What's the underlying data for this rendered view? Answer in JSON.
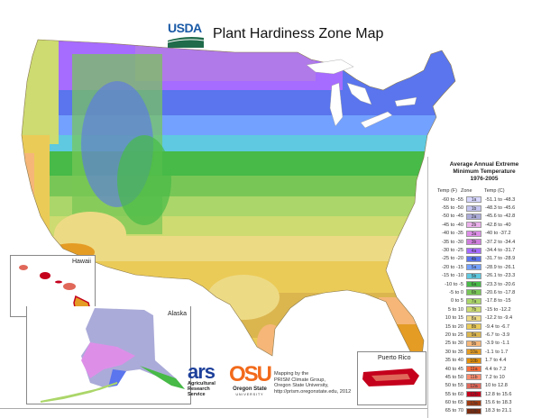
{
  "header": {
    "logo_text": "USDA",
    "title": "Plant Hardiness Zone Map"
  },
  "legend": {
    "title_lines": [
      "Average Annual Extreme",
      "Minimum Temperature",
      "1976-2005"
    ],
    "col_f": "Temp (F)",
    "col_zone": "Zone",
    "col_c": "Temp (C)",
    "rows": [
      {
        "f": "-60 to -55",
        "zone": "1a",
        "c": "-51.1 to -48.3",
        "color": "#d6d6ff"
      },
      {
        "f": "-55 to -50",
        "zone": "1b",
        "c": "-48.3 to -45.6",
        "color": "#c4c4f2"
      },
      {
        "f": "-50 to -45",
        "zone": "2a",
        "c": "-45.6 to -42.8",
        "color": "#ababd9"
      },
      {
        "f": "-45 to -40",
        "zone": "2b",
        "c": "-42.8 to -40",
        "color": "#ebb0eb"
      },
      {
        "f": "-40 to -35",
        "zone": "3a",
        "c": "-40 to -37.2",
        "color": "#dd8fe8"
      },
      {
        "f": "-35 to -30",
        "zone": "3b",
        "c": "-37.2 to -34.4",
        "color": "#cf7ddd"
      },
      {
        "f": "-30 to -25",
        "zone": "4a",
        "c": "-34.4 to -31.7",
        "color": "#a66bff"
      },
      {
        "f": "-25 to -20",
        "zone": "4b",
        "c": "-31.7 to -28.9",
        "color": "#5a75ed"
      },
      {
        "f": "-20 to -15",
        "zone": "5a",
        "c": "-28.9 to -26.1",
        "color": "#73a1ff"
      },
      {
        "f": "-15 to -10",
        "zone": "5b",
        "c": "-26.1 to -23.3",
        "color": "#5ec9e0"
      },
      {
        "f": "-10 to -5",
        "zone": "6a",
        "c": "-23.3 to -20.6",
        "color": "#47ba47"
      },
      {
        "f": "-5 to 0",
        "zone": "6b",
        "c": "-20.6 to -17.8",
        "color": "#78c756"
      },
      {
        "f": "0 to 5",
        "zone": "7a",
        "c": "-17.8 to -15",
        "color": "#abd669"
      },
      {
        "f": "5 to 10",
        "zone": "7b",
        "c": "-15 to -12.2",
        "color": "#cddb70"
      },
      {
        "f": "10 to 15",
        "zone": "8a",
        "c": "-12.2 to -9.4",
        "color": "#edda85"
      },
      {
        "f": "15 to 20",
        "zone": "8b",
        "c": "-9.4 to -6.7",
        "color": "#ebcb57"
      },
      {
        "f": "20 to 25",
        "zone": "9a",
        "c": "-6.7 to -3.9",
        "color": "#dbb64f"
      },
      {
        "f": "25 to 30",
        "zone": "9b",
        "c": "-3.9 to -1.1",
        "color": "#f5b678"
      },
      {
        "f": "30 to 35",
        "zone": "10a",
        "c": "-1.1 to 1.7",
        "color": "#e59c24"
      },
      {
        "f": "35 to 40",
        "zone": "10b",
        "c": "1.7 to 4.4",
        "color": "#e38f09"
      },
      {
        "f": "40 to 45",
        "zone": "11a",
        "c": "4.4 to 7.2",
        "color": "#fa6e3c"
      },
      {
        "f": "45 to 50",
        "zone": "11b",
        "c": "7.2 to 10",
        "color": "#fa8c6e"
      },
      {
        "f": "50 to 55",
        "zone": "12a",
        "c": "10 to 12.8",
        "color": "#e0685a"
      },
      {
        "f": "55 to 60",
        "zone": "12b",
        "c": "12.8 to 15.6",
        "color": "#c4001c"
      },
      {
        "f": "60 to 65",
        "zone": "13a",
        "c": "15.6 to 18.3",
        "color": "#9e3b12"
      },
      {
        "f": "65 to 70",
        "zone": "13b",
        "c": "18.3 to 21.1",
        "color": "#7a2b0f"
      }
    ]
  },
  "insets": {
    "hawaii": "Hawaii",
    "alaska": "Alaska",
    "puerto_rico": "Puerto Rico"
  },
  "credits": {
    "ars_logo": "ars",
    "ars_name": [
      "Agricultural",
      "Research",
      "Service"
    ],
    "osu_logo": "OSU",
    "osu_name": "Oregon State",
    "osu_sub": "UNIVERSITY",
    "lines": [
      "Mapping by the",
      "PRISM Climate Group,",
      "Oregon State University,",
      "http://prism.oregonstate.edu, 2012"
    ]
  }
}
